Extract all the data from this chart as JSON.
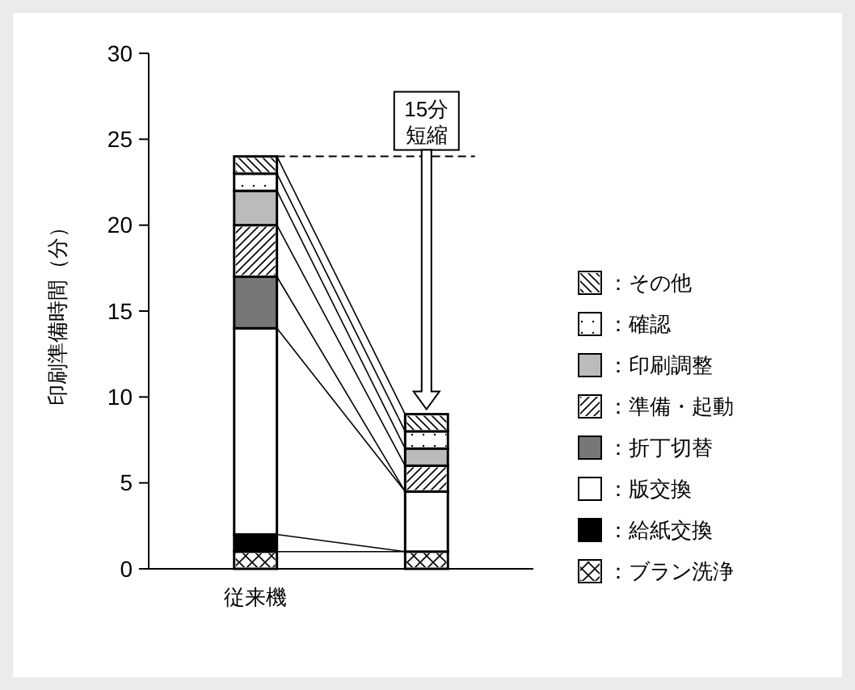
{
  "chart_data": {
    "type": "bar",
    "stacked": true,
    "ylabel": "印刷準備時間（分）",
    "categories": [
      "従来機",
      null
    ],
    "ylim": [
      0,
      30
    ],
    "yticks": [
      0,
      5,
      10,
      15,
      20,
      25,
      30
    ],
    "legend": "right",
    "grid": false,
    "series": [
      {
        "name": "：ブラン洗浄",
        "color": "#ffffff",
        "values": [
          1,
          1
        ]
      },
      {
        "name": "：給紙交換",
        "color": "#000000",
        "values": [
          1,
          0
        ]
      },
      {
        "name": "：版交換",
        "color": "#ffffff",
        "values": [
          12,
          3.5
        ]
      },
      {
        "name": "：折丁切替",
        "color": "#777777",
        "values": [
          3,
          0
        ]
      },
      {
        "name": "：準備・起動",
        "color": "#ffffff",
        "values": [
          3,
          1.5
        ]
      },
      {
        "name": "：印刷調整",
        "color": "#bbbbbb",
        "values": [
          2,
          1
        ]
      },
      {
        "name": "：確認",
        "color": "#ffffff",
        "values": [
          1,
          1
        ]
      },
      {
        "name": "：その他",
        "color": "#ffffff",
        "values": [
          1,
          1
        ]
      }
    ],
    "ref_lines": [
      {
        "axis": "y",
        "value": 24,
        "line_style": "dashed"
      }
    ],
    "annotations": [
      {
        "text": "15分",
        "y": 24
      },
      "短縮"
    ]
  }
}
